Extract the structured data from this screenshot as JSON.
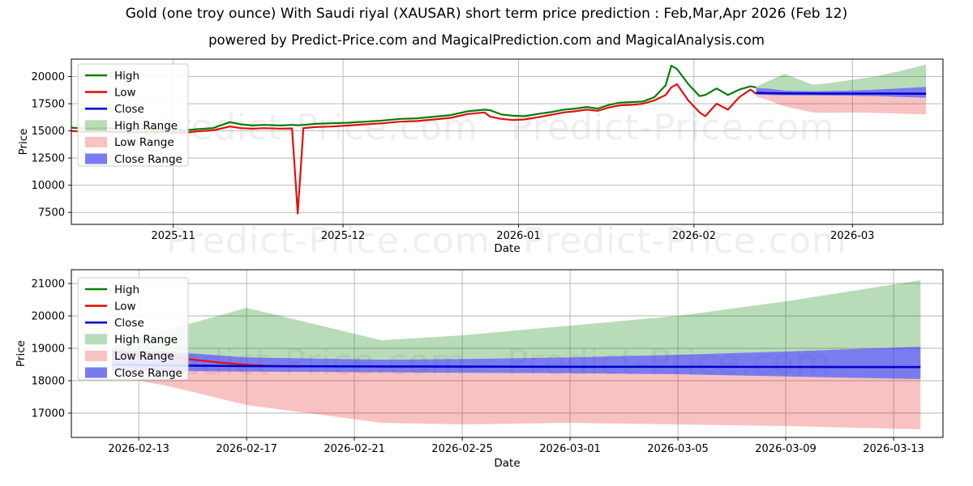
{
  "title": "Gold (one troy ounce) With Saudi riyal (XAUSAR) short term price prediction : Feb,Mar,Apr 2026 (Feb 12)",
  "subtitle": "powered by Predict-Price.com and MagicalPrediction.com and MagicalAnalysis.com",
  "watermark": {
    "text": "Predict-Price.com"
  },
  "colors": {
    "high_line": "#067d06",
    "low_line": "#e01010",
    "close_line": "#0000cd",
    "high_fill": "rgba(0,128,0,0.28)",
    "low_fill": "rgba(230,0,0,0.24)",
    "close_fill": "rgba(35,35,230,0.6)",
    "grid": "#b3b3b3",
    "frame": "#000000",
    "watermark": "#999999"
  },
  "legend": {
    "items": [
      {
        "label": "High",
        "type": "line",
        "color": "#067d06"
      },
      {
        "label": "Low",
        "type": "line",
        "color": "#e01010"
      },
      {
        "label": "Close",
        "type": "line",
        "color": "#0000cd"
      },
      {
        "label": "High Range",
        "type": "patch",
        "color": "rgba(0,128,0,0.28)"
      },
      {
        "label": "Low Range",
        "type": "patch",
        "color": "rgba(230,0,0,0.24)"
      },
      {
        "label": "Close Range",
        "type": "patch",
        "color": "rgba(35,35,230,0.6)"
      }
    ]
  },
  "history": {
    "dates": [
      "2025-10-14",
      "2025-10-17",
      "2025-10-20",
      "2025-10-24",
      "2025-10-28",
      "2025-11-01",
      "2025-11-03",
      "2025-11-05",
      "2025-11-08",
      "2025-11-11",
      "2025-11-13",
      "2025-11-15",
      "2025-11-17",
      "2025-11-20",
      "2025-11-22",
      "2025-11-23",
      "2025-11-24",
      "2025-11-26",
      "2025-11-29",
      "2025-12-02",
      "2025-12-05",
      "2025-12-08",
      "2025-12-11",
      "2025-12-14",
      "2025-12-17",
      "2025-12-20",
      "2025-12-23",
      "2025-12-26",
      "2025-12-27",
      "2025-12-29",
      "2025-12-31",
      "2026-01-02",
      "2026-01-05",
      "2026-01-07",
      "2026-01-09",
      "2026-01-11",
      "2026-01-13",
      "2026-01-15",
      "2026-01-17",
      "2026-01-19",
      "2026-01-21",
      "2026-01-23",
      "2026-01-25",
      "2026-01-27",
      "2026-01-28",
      "2026-01-29",
      "2026-01-31",
      "2026-02-02",
      "2026-02-03",
      "2026-02-05",
      "2026-02-07",
      "2026-02-09",
      "2026-02-11",
      "2026-02-12"
    ],
    "high": [
      15300,
      15200,
      15250,
      15150,
      15200,
      15100,
      15050,
      15150,
      15250,
      15800,
      15600,
      15500,
      15550,
      15500,
      15550,
      15520,
      15550,
      15650,
      15700,
      15750,
      15850,
      15950,
      16100,
      16150,
      16300,
      16450,
      16800,
      16950,
      16900,
      16500,
      16400,
      16350,
      16600,
      16750,
      16950,
      17050,
      17200,
      17050,
      17400,
      17600,
      17650,
      17700,
      18100,
      19200,
      21000,
      20700,
      19300,
      18200,
      18300,
      18900,
      18300,
      18800,
      19100,
      19000
    ],
    "low": [
      15000,
      14900,
      14950,
      14850,
      14900,
      14880,
      14820,
      14950,
      15050,
      15400,
      15250,
      15200,
      15250,
      15200,
      15230,
      7400,
      15250,
      15350,
      15400,
      15500,
      15600,
      15700,
      15850,
      15900,
      16050,
      16200,
      16550,
      16700,
      16300,
      16100,
      16000,
      16050,
      16300,
      16500,
      16700,
      16800,
      16950,
      16850,
      17150,
      17350,
      17400,
      17500,
      17800,
      18300,
      19000,
      19300,
      17800,
      16700,
      16350,
      17500,
      16950,
      18100,
      18800,
      18400
    ]
  },
  "prediction": {
    "dates": [
      "2026-02-12",
      "2026-02-14",
      "2026-02-17",
      "2026-02-22",
      "2026-02-25",
      "2026-03-01",
      "2026-03-05",
      "2026-03-09",
      "2026-03-14"
    ],
    "high_top": [
      19050,
      19550,
      20250,
      19250,
      19400,
      19700,
      20000,
      20450,
      21100
    ],
    "close_top": [
      18950,
      18900,
      18720,
      18650,
      18670,
      18720,
      18800,
      18900,
      19050
    ],
    "close": [
      18500,
      18470,
      18450,
      18440,
      18435,
      18430,
      18430,
      18425,
      18420
    ],
    "close_bot": [
      18320,
      18300,
      18280,
      18260,
      18245,
      18230,
      18200,
      18130,
      18050
    ],
    "low_bot": [
      18150,
      17850,
      17250,
      16700,
      16650,
      16700,
      16650,
      16600,
      16500
    ]
  },
  "low_projection": {
    "dates": [
      "2026-02-12",
      "2026-02-13",
      "2026-02-14",
      "2026-02-15",
      "2026-02-16",
      "2026-02-17",
      "2026-02-18",
      "2026-02-19"
    ],
    "values": [
      18900,
      18800,
      18760,
      18650,
      18560,
      18490,
      18450,
      18435
    ]
  },
  "chart_data": [
    {
      "type": "line",
      "name": "historical-and-forecast",
      "xlabel": "Date",
      "ylabel": "Price",
      "x_domain": [
        "2025-10-14",
        "2026-03-17"
      ],
      "y_domain": [
        6400,
        21600
      ],
      "y_ticks": [
        7500,
        10000,
        12500,
        15000,
        17500,
        20000
      ],
      "x_ticks": [
        {
          "v": "2025-11-01",
          "label": "2025-11"
        },
        {
          "v": "2025-12-01",
          "label": "2025-12"
        },
        {
          "v": "2026-01-01",
          "label": "2026-01"
        },
        {
          "v": "2026-02-01",
          "label": "2026-02"
        },
        {
          "v": "2026-03-01",
          "label": "2026-03"
        }
      ],
      "show": [
        "history_high",
        "history_low",
        "bands",
        "close_line"
      ]
    },
    {
      "type": "area",
      "name": "forecast-zoom",
      "xlabel": "Date",
      "ylabel": "Price",
      "x_domain": [
        "2026-02-10 12:00",
        "2026-03-14 20:00"
      ],
      "y_domain": [
        16250,
        21425
      ],
      "y_ticks": [
        17000,
        18000,
        19000,
        20000,
        21000
      ],
      "x_ticks": [
        {
          "v": "2026-02-13",
          "label": "2026-02-13"
        },
        {
          "v": "2026-02-17",
          "label": "2026-02-17"
        },
        {
          "v": "2026-02-21",
          "label": "2026-02-21"
        },
        {
          "v": "2026-02-25",
          "label": "2026-02-25"
        },
        {
          "v": "2026-03-01",
          "label": "2026-03-01"
        },
        {
          "v": "2026-03-05",
          "label": "2026-03-05"
        },
        {
          "v": "2026-03-09",
          "label": "2026-03-09"
        },
        {
          "v": "2026-03-13",
          "label": "2026-03-13"
        }
      ],
      "show": [
        "bands",
        "low_projection",
        "close_line"
      ]
    }
  ]
}
